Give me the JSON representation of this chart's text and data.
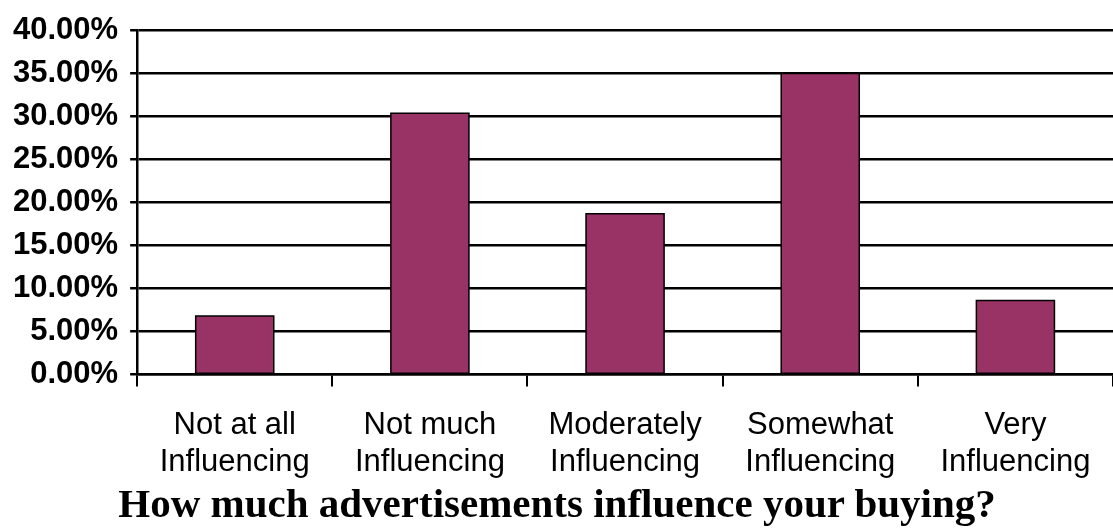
{
  "chart_data": {
    "type": "bar",
    "xlabel": "How much advertisements influence your buying?",
    "categories": [
      "Not at all\nInfluencing",
      "Not much\nInfluencing",
      "Moderately\nInfluencing",
      "Somewhat\nInfluencing",
      "Very\nInfluencing"
    ],
    "values": [
      6.8,
      30.4,
      18.7,
      35.0,
      8.6
    ],
    "color": "#993366",
    "ylim": [
      0,
      40
    ],
    "yticks": [
      {
        "value": 0,
        "label": "0.00%"
      },
      {
        "value": 5,
        "label": "5.00%"
      },
      {
        "value": 10,
        "label": "10.00%"
      },
      {
        "value": 15,
        "label": "15.00%"
      },
      {
        "value": 20,
        "label": "20.00%"
      },
      {
        "value": 25,
        "label": "25.00%"
      },
      {
        "value": 30,
        "label": "30.00%"
      },
      {
        "value": 35,
        "label": "35.00%"
      },
      {
        "value": 40,
        "label": "40.00%"
      }
    ],
    "grid": "y",
    "legend": false
  }
}
